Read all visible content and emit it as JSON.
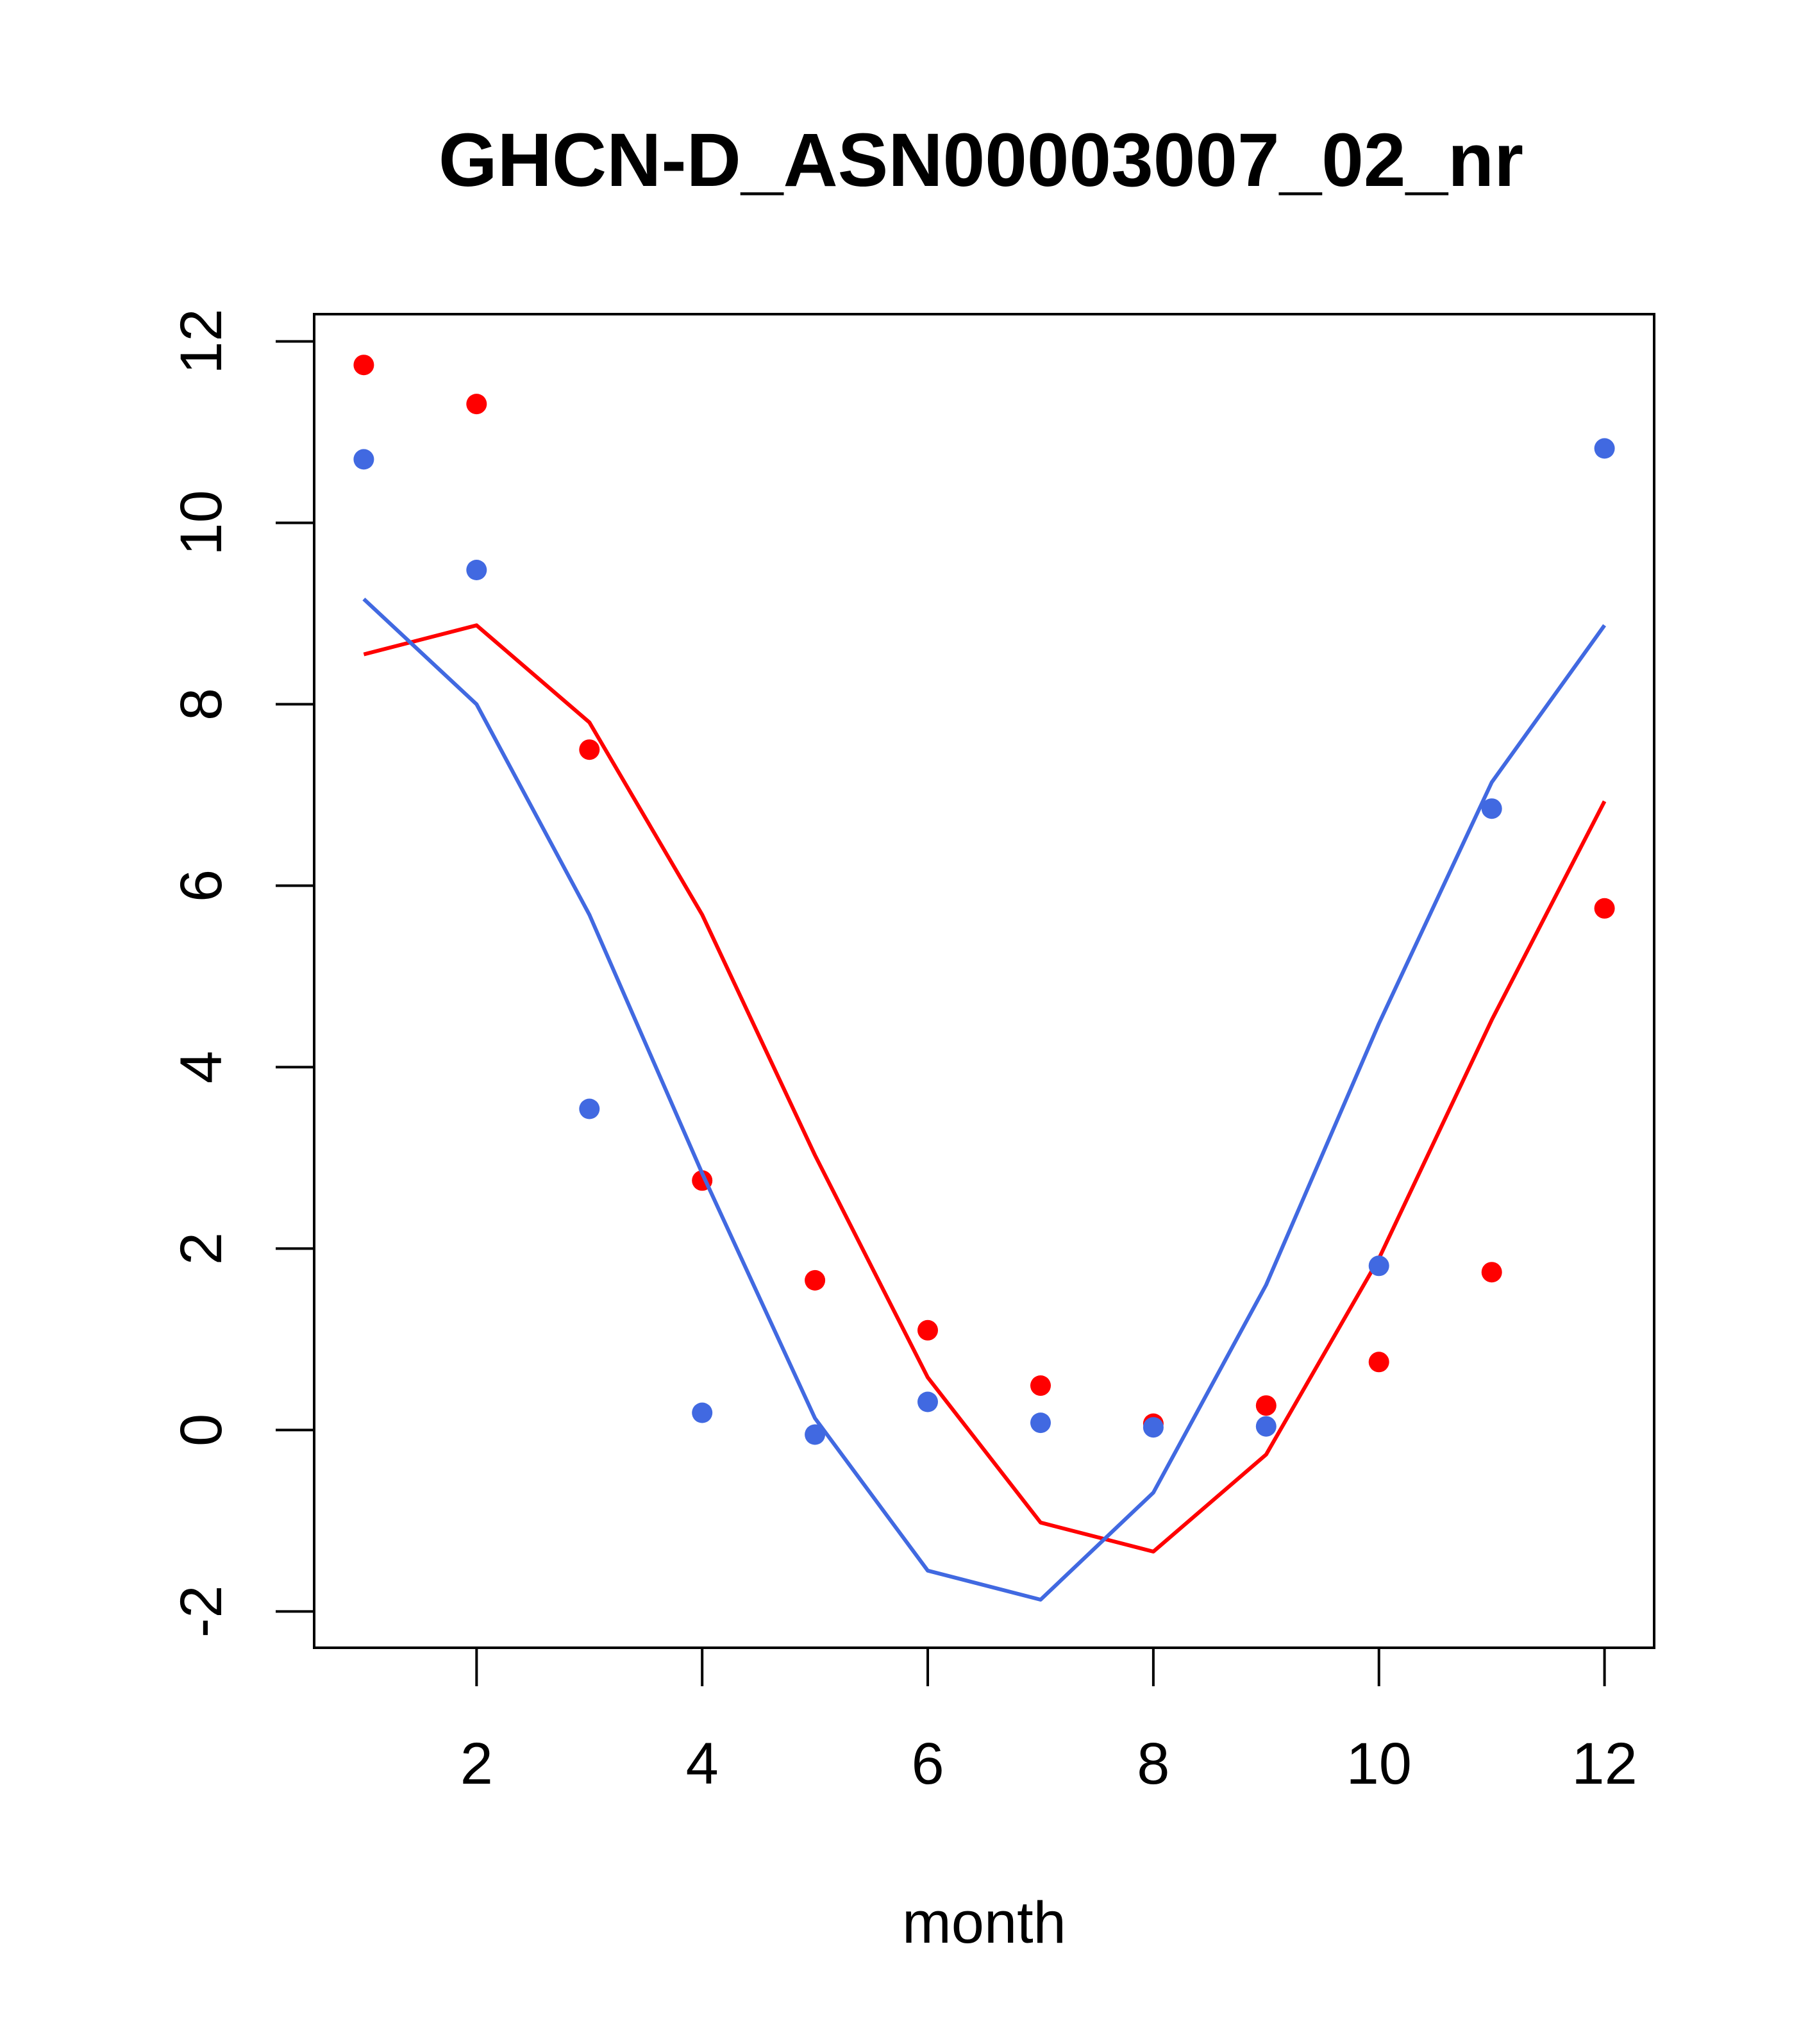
{
  "chart_data": {
    "type": "line",
    "title": "GHCN-D_ASN00003007_02_nr",
    "xlabel": "month",
    "ylabel": "",
    "xlim": [
      0.56,
      12.44
    ],
    "ylim": [
      -2.4,
      12.3
    ],
    "xticks": [
      "2",
      "4",
      "6",
      "8",
      "10",
      "12"
    ],
    "yticks": [
      "-2",
      "0",
      "2",
      "4",
      "6",
      "8",
      "10",
      "12"
    ],
    "grid": false,
    "legend": "none",
    "series": [
      {
        "color": "#FF0000",
        "line": {
          "x": [
            1,
            2,
            3,
            4,
            5,
            6,
            7,
            8,
            9,
            10,
            11,
            12
          ],
          "y": [
            8.55,
            8.87,
            7.8,
            5.68,
            3.03,
            0.58,
            -1.02,
            -1.34,
            -0.27,
            1.89,
            4.52,
            6.93
          ]
        },
        "points": {
          "x": [
            1,
            2,
            3,
            4,
            5,
            6,
            7,
            8,
            9,
            10,
            11,
            12
          ],
          "y": [
            11.74,
            11.31,
            7.5,
            2.75,
            1.65,
            1.1,
            0.49,
            0.07,
            0.27,
            0.75,
            1.74,
            5.75
          ]
        }
      },
      {
        "color": "#4169E1",
        "line": {
          "x": [
            1,
            2,
            3,
            4,
            5,
            6,
            7,
            8,
            9,
            10,
            11,
            12
          ],
          "y": [
            9.16,
            8.0,
            5.68,
            2.83,
            0.13,
            -1.55,
            -1.87,
            -0.69,
            1.6,
            4.48,
            7.14,
            8.87
          ]
        },
        "points": {
          "x": [
            1,
            2,
            3,
            4,
            5,
            6,
            7,
            8,
            9,
            10,
            11,
            12
          ],
          "y": [
            10.7,
            9.48,
            3.54,
            0.19,
            -0.05,
            0.31,
            0.08,
            0.03,
            0.04,
            1.81,
            6.85,
            10.82
          ]
        }
      }
    ]
  }
}
